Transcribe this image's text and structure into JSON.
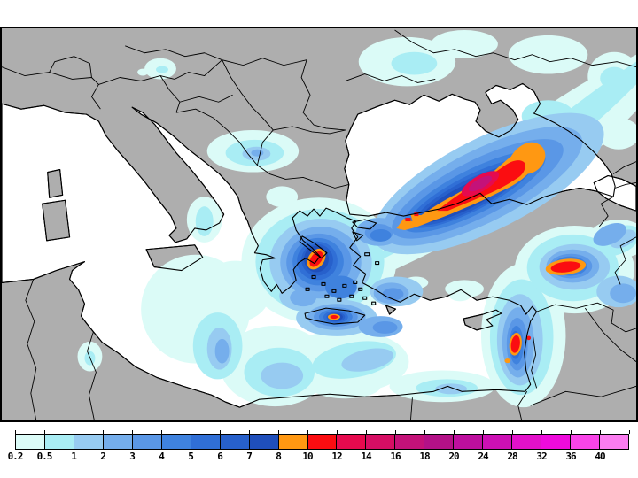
{
  "map": {
    "colors": {
      "background": "#FFFFFF",
      "land": "#AEAEAE",
      "sea": "#FFFFFF",
      "coastline": "#000000",
      "frame": "#000000"
    }
  },
  "precipitation_palette": {
    "lv1": "#DBFBF7",
    "lv2": "#A9EDF4",
    "lv3": "#97CBF1",
    "lv4": "#75AEEC",
    "lv5": "#5A97E6",
    "lv6": "#3F82DE",
    "lv7": "#306FD6",
    "lv8": "#2760CB",
    "lv9": "#1F4FBB",
    "orange": "#FF9812",
    "red": "#FB0D11",
    "crimson": "#E60A4E",
    "magenta": "#C41279"
  },
  "colorbar": {
    "outline_color": "#000000",
    "segments": [
      {
        "label": "0.2",
        "color": "#DBFBF7"
      },
      {
        "label": "0.5",
        "color": "#A9EDF4"
      },
      {
        "label": "1",
        "color": "#97CBF1"
      },
      {
        "label": "2",
        "color": "#75AEEC"
      },
      {
        "label": "3",
        "color": "#5A97E6"
      },
      {
        "label": "4",
        "color": "#3F82DE"
      },
      {
        "label": "5",
        "color": "#306FD6"
      },
      {
        "label": "6",
        "color": "#2760CB"
      },
      {
        "label": "7",
        "color": "#1F4FBB"
      },
      {
        "label": "8",
        "color": "#FF9812"
      },
      {
        "label": "10",
        "color": "#FB0D11"
      },
      {
        "label": "12",
        "color": "#E60A4E"
      },
      {
        "label": "14",
        "color": "#D60E64"
      },
      {
        "label": "16",
        "color": "#C41279"
      },
      {
        "label": "18",
        "color": "#B31187"
      },
      {
        "label": "20",
        "color": "#BD0F9E"
      },
      {
        "label": "24",
        "color": "#CC10B4"
      },
      {
        "label": "28",
        "color": "#E311CA"
      },
      {
        "label": "32",
        "color": "#EF0BDC"
      },
      {
        "label": "36",
        "color": "#F944E8"
      },
      {
        "label": "40",
        "color": "#FB7CF0"
      }
    ]
  }
}
